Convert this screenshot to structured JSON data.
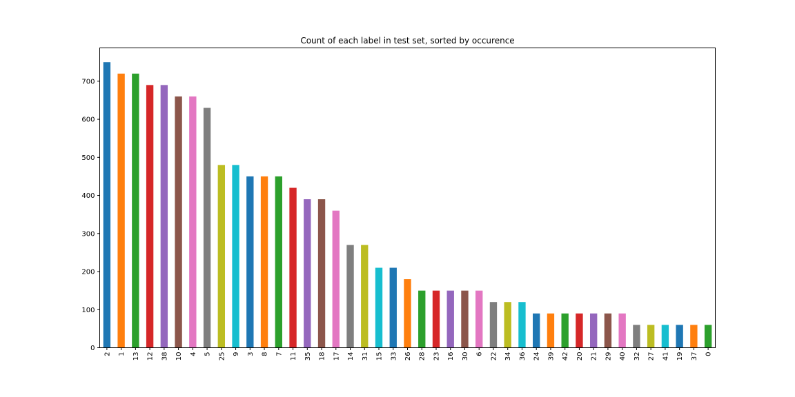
{
  "chart_data": {
    "type": "bar",
    "title": "Count of each label in test set, sorted by occurence",
    "xlabel": "",
    "ylabel": "",
    "categories": [
      "2",
      "1",
      "13",
      "12",
      "38",
      "10",
      "4",
      "5",
      "25",
      "9",
      "3",
      "8",
      "7",
      "11",
      "35",
      "18",
      "17",
      "14",
      "31",
      "15",
      "33",
      "26",
      "28",
      "23",
      "16",
      "30",
      "6",
      "22",
      "34",
      "36",
      "24",
      "39",
      "42",
      "20",
      "21",
      "29",
      "40",
      "32",
      "27",
      "41",
      "19",
      "37",
      "0"
    ],
    "values": [
      750,
      720,
      720,
      690,
      690,
      660,
      660,
      630,
      480,
      480,
      450,
      450,
      450,
      420,
      390,
      390,
      360,
      270,
      270,
      210,
      210,
      180,
      150,
      150,
      150,
      150,
      150,
      120,
      120,
      120,
      90,
      90,
      90,
      90,
      90,
      90,
      90,
      60,
      60,
      60,
      60,
      60,
      60
    ],
    "ylim": [
      0,
      787.5
    ],
    "yticks": [
      0,
      100,
      200,
      300,
      400,
      500,
      600,
      700
    ],
    "grid": false,
    "legend": "none",
    "colors": [
      "#1f77b4",
      "#ff7f0e",
      "#2ca02c",
      "#d62728",
      "#9467bd",
      "#8c564b",
      "#e377c2",
      "#7f7f7f",
      "#bcbd22",
      "#17becf"
    ]
  }
}
